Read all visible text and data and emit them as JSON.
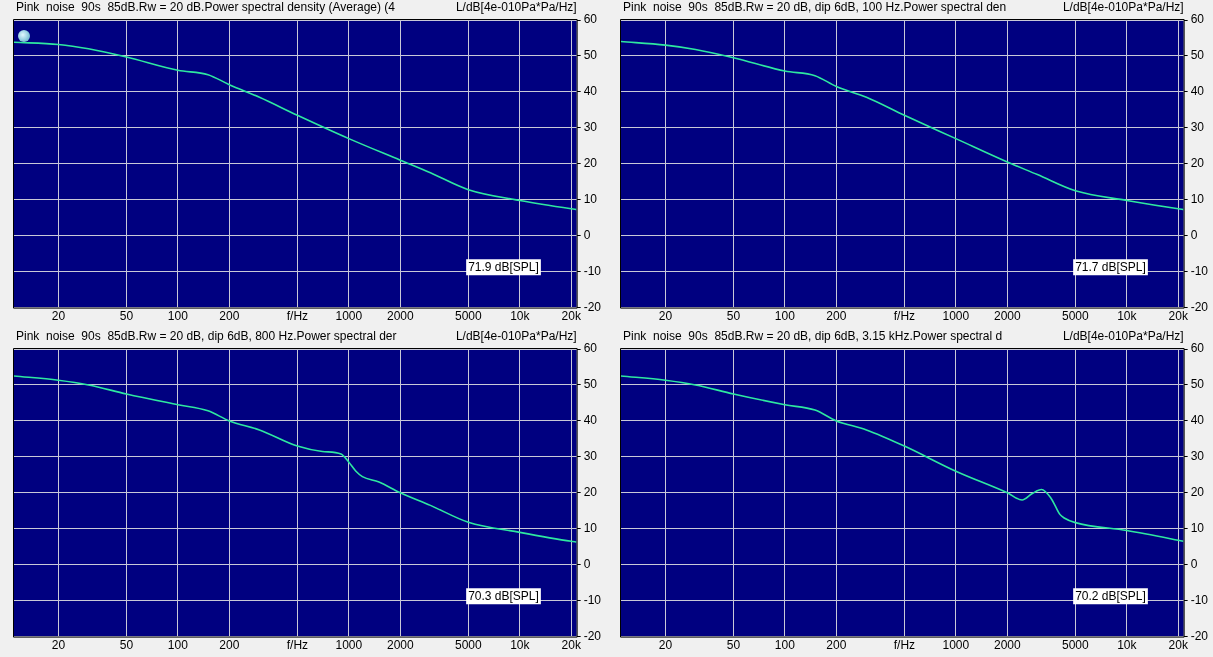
{
  "chart_data": [
    {
      "type": "line",
      "title": "Pink  noise  90s  85dB.Rw = 20 dB.Power spectral density (Average) (4",
      "ylabel": "L/dB[4e-010Pa*Pa/Hz]",
      "annotations": [
        "71.9 dB[SPL]"
      ],
      "log": "x",
      "grid": true,
      "legend": false,
      "marker": "none",
      "line_style": "solid",
      "xlim": [
        11,
        21500
      ],
      "ylim": [
        -20,
        60
      ],
      "xticks": [
        20,
        50,
        100,
        200,
        {
          "value": 500,
          "label": "f/Hz"
        },
        1000,
        2000,
        5000,
        {
          "value": 10000,
          "label": "10k"
        },
        {
          "value": 20000,
          "label": "20k"
        }
      ],
      "yticks": [
        -20,
        -10,
        0,
        10,
        20,
        30,
        40,
        50,
        60
      ],
      "series": [
        {
          "color": "#2ee8a0",
          "x": [
            11,
            20,
            30,
            50,
            100,
            150,
            200,
            300,
            500,
            1000,
            2000,
            3000,
            5000,
            10000,
            20000,
            21500
          ],
          "values": [
            53.8,
            53.2,
            52,
            49.7,
            46,
            44.8,
            42,
            38.5,
            33.5,
            27,
            21,
            17.5,
            12.8,
            9.8,
            7.5,
            7.3
          ]
        }
      ]
    },
    {
      "type": "line",
      "title": "Pink  noise  90s  85dB.Rw = 20 dB, dip 6dB, 100 Hz.Power spectral den",
      "ylabel": "L/dB[4e-010Pa*Pa/Hz]",
      "annotations": [
        "71.7 dB[SPL]"
      ],
      "log": "x",
      "grid": true,
      "legend": false,
      "marker": "none",
      "line_style": "solid",
      "xlim": [
        11,
        21500
      ],
      "ylim": [
        -20,
        60
      ],
      "xticks": [
        20,
        50,
        100,
        200,
        {
          "value": 500,
          "label": "f/Hz"
        },
        1000,
        2000,
        5000,
        {
          "value": 10000,
          "label": "10k"
        },
        {
          "value": 20000,
          "label": "20k"
        }
      ],
      "yticks": [
        -20,
        -10,
        0,
        10,
        20,
        30,
        40,
        50,
        60
      ],
      "series": [
        {
          "color": "#2ee8a0",
          "x": [
            11,
            20,
            30,
            50,
            100,
            150,
            200,
            300,
            500,
            1000,
            2000,
            3000,
            5000,
            10000,
            20000,
            21500
          ],
          "values": [
            54,
            53,
            51.8,
            49.5,
            45.8,
            44.5,
            41.5,
            38.5,
            33.5,
            27,
            20.5,
            17,
            12.5,
            9.8,
            7.5,
            7.3
          ]
        }
      ]
    },
    {
      "type": "line",
      "title": "Pink  noise  90s  85dB.Rw = 20 dB, dip 6dB, 800 Hz.Power spectral der",
      "ylabel": "L/dB[4e-010Pa*Pa/Hz]",
      "annotations": [
        "70.3 dB[SPL]"
      ],
      "log": "x",
      "grid": true,
      "legend": false,
      "marker": "none",
      "line_style": "solid",
      "xlim": [
        11,
        21500
      ],
      "ylim": [
        -20,
        60
      ],
      "xticks": [
        20,
        50,
        100,
        200,
        {
          "value": 500,
          "label": "f/Hz"
        },
        1000,
        2000,
        5000,
        {
          "value": 10000,
          "label": "10k"
        },
        {
          "value": 20000,
          "label": "20k"
        }
      ],
      "yticks": [
        -20,
        -10,
        0,
        10,
        20,
        30,
        40,
        50,
        60
      ],
      "series": [
        {
          "color": "#2ee8a0",
          "x": [
            11,
            20,
            30,
            50,
            100,
            150,
            200,
            300,
            500,
            700,
            900,
            1000,
            1100,
            1200,
            1500,
            2000,
            3000,
            5000,
            10000,
            20000,
            21500
          ],
          "values": [
            52.5,
            51.3,
            50,
            47.5,
            44.5,
            42.8,
            40,
            37.5,
            33,
            31.5,
            30.8,
            28.5,
            26,
            24.5,
            23,
            20,
            16.5,
            11.8,
            9,
            6.5,
            6.3
          ]
        }
      ]
    },
    {
      "type": "line",
      "title": "Pink  noise  90s  85dB.Rw = 20 dB, dip 6dB, 3.15 kHz.Power spectral d",
      "ylabel": "L/dB[4e-010Pa*Pa/Hz]",
      "annotations": [
        "70.2 dB[SPL]"
      ],
      "log": "x",
      "grid": true,
      "legend": false,
      "marker": "none",
      "line_style": "solid",
      "xlim": [
        11,
        21500
      ],
      "ylim": [
        -20,
        60
      ],
      "xticks": [
        20,
        50,
        100,
        200,
        {
          "value": 500,
          "label": "f/Hz"
        },
        1000,
        2000,
        5000,
        {
          "value": 10000,
          "label": "10k"
        },
        {
          "value": 20000,
          "label": "20k"
        }
      ],
      "yticks": [
        -20,
        -10,
        0,
        10,
        20,
        30,
        40,
        50,
        60
      ],
      "series": [
        {
          "color": "#2ee8a0",
          "x": [
            11,
            20,
            30,
            50,
            100,
            150,
            200,
            300,
            500,
            1000,
            2000,
            2440,
            2800,
            3170,
            3600,
            4060,
            4300,
            5000,
            10000,
            20000,
            21500
          ],
          "values": [
            52.5,
            51.3,
            50,
            47.5,
            44.5,
            43,
            40,
            37.5,
            33,
            26,
            20,
            18,
            19.8,
            20.9,
            18.5,
            14,
            13,
            11.7,
            9.5,
            6.8,
            6.5
          ]
        }
      ]
    }
  ]
}
